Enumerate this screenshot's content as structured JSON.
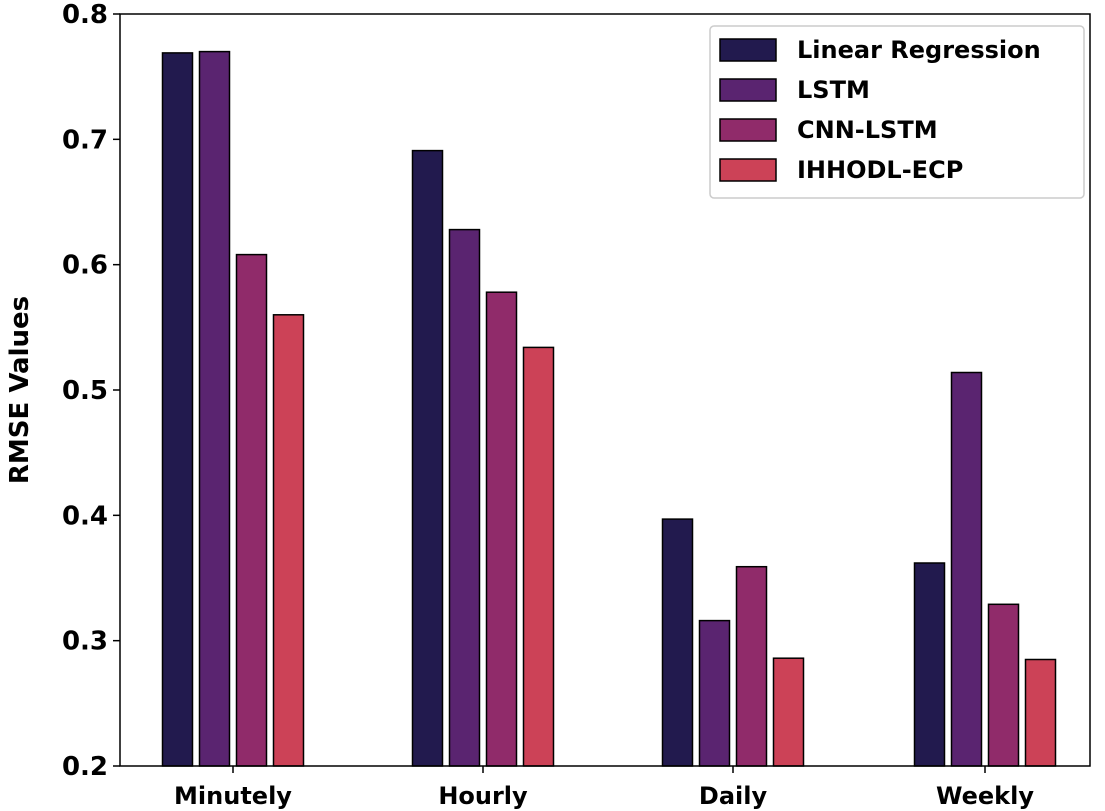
{
  "chart_data": {
    "type": "bar",
    "title": "",
    "xlabel": "",
    "ylabel": "RMSE Values",
    "ylim": [
      0.2,
      0.8
    ],
    "yticks": [
      0.2,
      0.3,
      0.4,
      0.5,
      0.6,
      0.7,
      0.8
    ],
    "ytick_labels": [
      "0.2",
      "0.3",
      "0.4",
      "0.5",
      "0.6",
      "0.7",
      "0.8"
    ],
    "categories": [
      "Minutely",
      "Hourly",
      "Daily",
      "Weekly"
    ],
    "legend_position": "top-right",
    "grid": false,
    "series": [
      {
        "name": "Linear Regression",
        "color": "#221a4e",
        "values": [
          0.769,
          0.691,
          0.397,
          0.362
        ]
      },
      {
        "name": "LSTM",
        "color": "#5a2470",
        "values": [
          0.77,
          0.628,
          0.316,
          0.514
        ]
      },
      {
        "name": "CNN-LSTM",
        "color": "#902b6a",
        "values": [
          0.608,
          0.578,
          0.359,
          0.329
        ]
      },
      {
        "name": "IHHODL-ECP",
        "color": "#cc4257",
        "values": [
          0.56,
          0.534,
          0.286,
          0.285
        ]
      }
    ]
  }
}
